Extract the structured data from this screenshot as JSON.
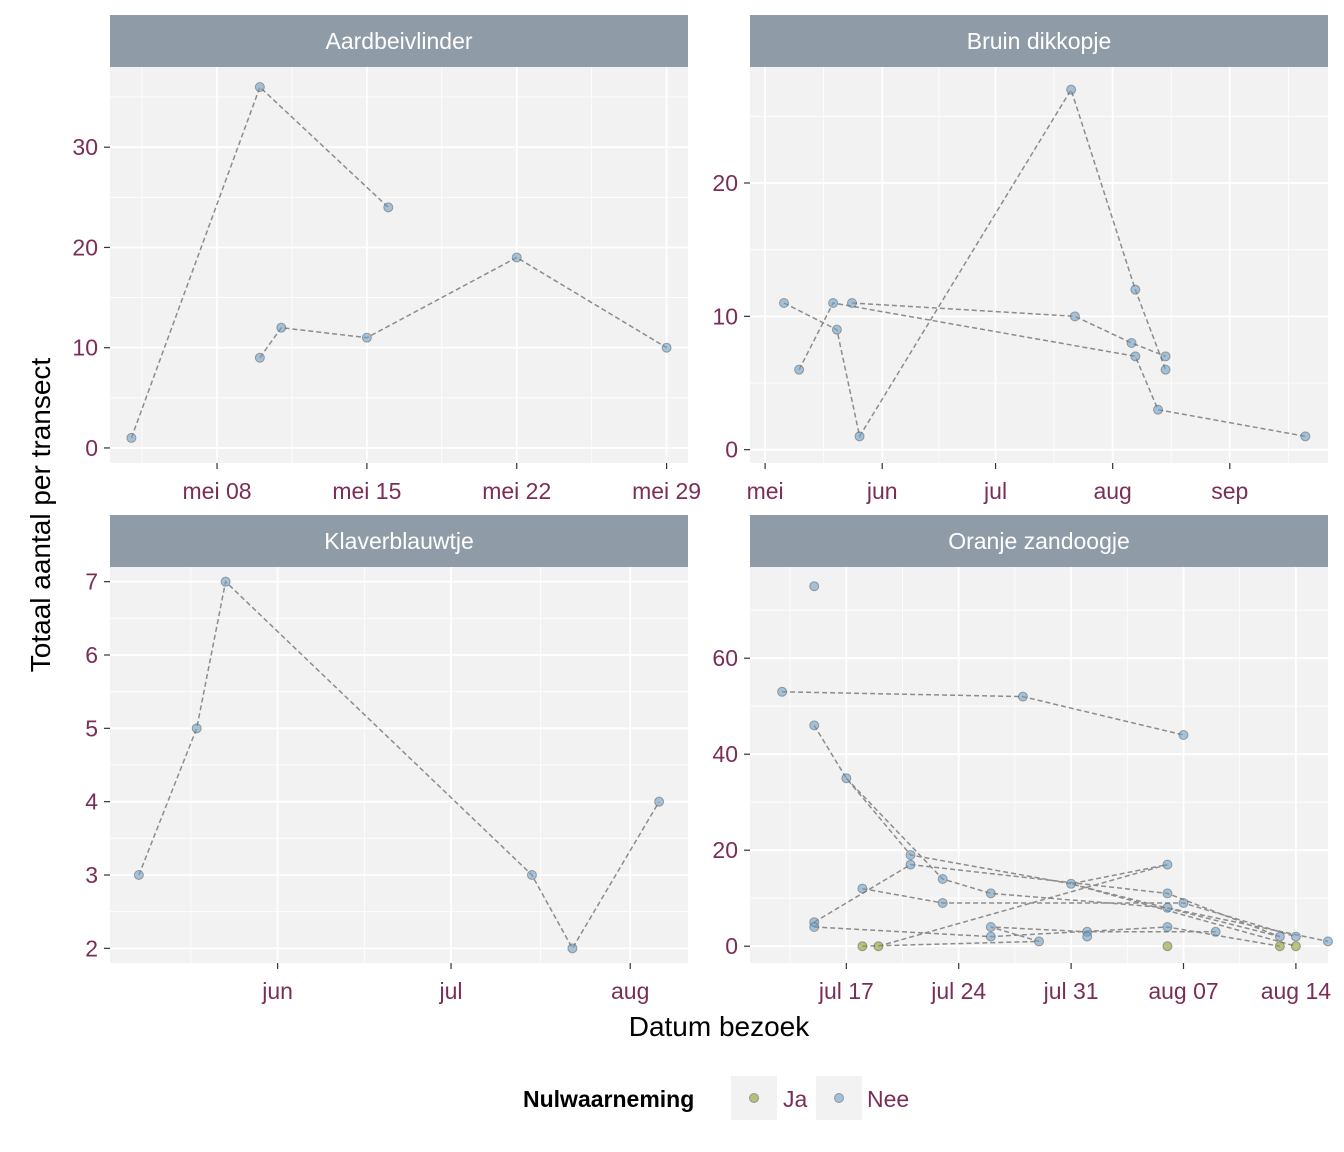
{
  "chart_data": {
    "type": "line",
    "xlabel": "Datum bezoek",
    "ylabel": "Totaal aantal per transect",
    "legend": {
      "title": "Nulwaarneming",
      "position": "bottom",
      "entries": [
        {
          "label": "Ja",
          "color": "#8f9c2f"
        },
        {
          "label": "Nee",
          "color": "#6e9ec4"
        }
      ]
    },
    "colors": {
      "panel_bg": "#f2f2f2",
      "strip_bg": "#8f9ba6",
      "grid": "#ffffff",
      "line": "#8c8c8c",
      "tick_text": "#7a2e57"
    },
    "panels": [
      {
        "title": "Aardbeivlinder",
        "xlim": [
          "2019-05-03",
          "2019-05-30"
        ],
        "ylim": [
          -1.5,
          38
        ],
        "xticks": [
          {
            "date": "2019-05-08",
            "label": "mei 08"
          },
          {
            "date": "2019-05-15",
            "label": "mei 15"
          },
          {
            "date": "2019-05-22",
            "label": "mei 22"
          },
          {
            "date": "2019-05-29",
            "label": "mei 29"
          }
        ],
        "yticks": [
          0,
          10,
          20,
          30
        ],
        "points": [
          {
            "x": "2019-05-04",
            "y": 1,
            "nul": "Nee"
          },
          {
            "x": "2019-05-10",
            "y": 36,
            "nul": "Nee"
          },
          {
            "x": "2019-05-16",
            "y": 24,
            "nul": "Nee"
          },
          {
            "x": "2019-05-10",
            "y": 9,
            "nul": "Nee"
          },
          {
            "x": "2019-05-11",
            "y": 12,
            "nul": "Nee"
          },
          {
            "x": "2019-05-15",
            "y": 11,
            "nul": "Nee"
          },
          {
            "x": "2019-05-22",
            "y": 19,
            "nul": "Nee"
          },
          {
            "x": "2019-05-29",
            "y": 10,
            "nul": "Nee"
          }
        ],
        "lines": [
          [
            0,
            1,
            2
          ],
          [
            3,
            4,
            5,
            6,
            7
          ]
        ]
      },
      {
        "title": "Bruin dikkopje",
        "xlim": [
          "2019-04-27",
          "2019-09-27"
        ],
        "ylim": [
          -1,
          28.7
        ],
        "xticks": [
          {
            "date": "2019-05-01",
            "label": "mei"
          },
          {
            "date": "2019-06-01",
            "label": "jun"
          },
          {
            "date": "2019-07-01",
            "label": "jul"
          },
          {
            "date": "2019-08-01",
            "label": "aug"
          },
          {
            "date": "2019-09-01",
            "label": "sep"
          }
        ],
        "yticks": [
          0,
          10,
          20
        ],
        "points": [
          {
            "x": "2019-05-06",
            "y": 11,
            "nul": "Nee"
          },
          {
            "x": "2019-05-10",
            "y": 6,
            "nul": "Nee"
          },
          {
            "x": "2019-05-19",
            "y": 11,
            "nul": "Nee"
          },
          {
            "x": "2019-05-20",
            "y": 9,
            "nul": "Nee"
          },
          {
            "x": "2019-05-24",
            "y": 11,
            "nul": "Nee"
          },
          {
            "x": "2019-05-26",
            "y": 1,
            "nul": "Nee"
          },
          {
            "x": "2019-07-21",
            "y": 27,
            "nul": "Nee"
          },
          {
            "x": "2019-07-22",
            "y": 10,
            "nul": "Nee"
          },
          {
            "x": "2019-08-06",
            "y": 8,
            "nul": "Nee"
          },
          {
            "x": "2019-08-07",
            "y": 12,
            "nul": "Nee"
          },
          {
            "x": "2019-08-07",
            "y": 7,
            "nul": "Nee"
          },
          {
            "x": "2019-08-13",
            "y": 3,
            "nul": "Nee"
          },
          {
            "x": "2019-08-15",
            "y": 7,
            "nul": "Nee"
          },
          {
            "x": "2019-08-15",
            "y": 6,
            "nul": "Nee"
          },
          {
            "x": "2019-09-21",
            "y": 1,
            "nul": "Nee"
          }
        ],
        "lines": [
          [
            0,
            3,
            5,
            6,
            9,
            13
          ],
          [
            1,
            2,
            10,
            11,
            14
          ],
          [
            4,
            7,
            8,
            12
          ]
        ]
      },
      {
        "title": "Klaverblauwtje",
        "xlim": [
          "2019-05-03",
          "2019-08-11"
        ],
        "ylim": [
          1.8,
          7.2
        ],
        "xticks": [
          {
            "date": "2019-06-01",
            "label": "jun"
          },
          {
            "date": "2019-07-01",
            "label": "jul"
          },
          {
            "date": "2019-08-01",
            "label": "aug"
          }
        ],
        "yticks": [
          2,
          3,
          4,
          5,
          6,
          7
        ],
        "points": [
          {
            "x": "2019-05-08",
            "y": 3,
            "nul": "Nee"
          },
          {
            "x": "2019-05-18",
            "y": 5,
            "nul": "Nee"
          },
          {
            "x": "2019-05-23",
            "y": 7,
            "nul": "Nee"
          },
          {
            "x": "2019-07-15",
            "y": 3,
            "nul": "Nee"
          },
          {
            "x": "2019-07-22",
            "y": 2,
            "nul": "Nee"
          },
          {
            "x": "2019-08-06",
            "y": 4,
            "nul": "Nee"
          }
        ],
        "lines": [
          [
            0,
            1,
            2,
            3,
            4,
            5
          ]
        ]
      },
      {
        "title": "Oranje zandoogje",
        "xlim": [
          "2019-07-11",
          "2019-08-16"
        ],
        "ylim": [
          -3.5,
          79
        ],
        "xticks": [
          {
            "date": "2019-07-17",
            "label": "jul 17"
          },
          {
            "date": "2019-07-24",
            "label": "jul 24"
          },
          {
            "date": "2019-07-31",
            "label": "jul 31"
          },
          {
            "date": "2019-08-07",
            "label": "aug 07"
          },
          {
            "date": "2019-08-14",
            "label": "aug 14"
          }
        ],
        "yticks": [
          0,
          20,
          40,
          60
        ],
        "points": [
          {
            "x": "2019-07-13",
            "y": 53,
            "nul": "Nee"
          },
          {
            "x": "2019-07-28",
            "y": 52,
            "nul": "Nee"
          },
          {
            "x": "2019-08-07",
            "y": 44,
            "nul": "Nee"
          },
          {
            "x": "2019-07-15",
            "y": 75,
            "nul": "Nee"
          },
          {
            "x": "2019-07-15",
            "y": 46,
            "nul": "Nee"
          },
          {
            "x": "2019-07-17",
            "y": 35,
            "nul": "Nee"
          },
          {
            "x": "2019-07-21",
            "y": 19,
            "nul": "Nee"
          },
          {
            "x": "2019-07-21",
            "y": 17,
            "nul": "Nee"
          },
          {
            "x": "2019-07-18",
            "y": 12,
            "nul": "Nee"
          },
          {
            "x": "2019-07-23",
            "y": 14,
            "nul": "Nee"
          },
          {
            "x": "2019-07-23",
            "y": 9,
            "nul": "Nee"
          },
          {
            "x": "2019-07-26",
            "y": 11,
            "nul": "Nee"
          },
          {
            "x": "2019-07-26",
            "y": 4,
            "nul": "Nee"
          },
          {
            "x": "2019-07-26",
            "y": 2,
            "nul": "Nee"
          },
          {
            "x": "2019-07-29",
            "y": 1,
            "nul": "Nee"
          },
          {
            "x": "2019-07-31",
            "y": 13,
            "nul": "Nee"
          },
          {
            "x": "2019-08-01",
            "y": 3,
            "nul": "Nee"
          },
          {
            "x": "2019-08-01",
            "y": 2,
            "nul": "Nee"
          },
          {
            "x": "2019-08-06",
            "y": 17,
            "nul": "Nee"
          },
          {
            "x": "2019-08-06",
            "y": 11,
            "nul": "Nee"
          },
          {
            "x": "2019-08-06",
            "y": 8,
            "nul": "Nee"
          },
          {
            "x": "2019-08-06",
            "y": 4,
            "nul": "Nee"
          },
          {
            "x": "2019-08-07",
            "y": 9,
            "nul": "Nee"
          },
          {
            "x": "2019-08-09",
            "y": 3,
            "nul": "Nee"
          },
          {
            "x": "2019-08-13",
            "y": 2,
            "nul": "Nee"
          },
          {
            "x": "2019-08-14",
            "y": 2,
            "nul": "Nee"
          },
          {
            "x": "2019-08-16",
            "y": 1,
            "nul": "Nee"
          },
          {
            "x": "2019-07-15",
            "y": 5,
            "nul": "Nee"
          },
          {
            "x": "2019-07-15",
            "y": 4,
            "nul": "Nee"
          },
          {
            "x": "2019-07-18",
            "y": 0,
            "nul": "Ja"
          },
          {
            "x": "2019-07-19",
            "y": 0,
            "nul": "Ja"
          },
          {
            "x": "2019-08-06",
            "y": 0,
            "nul": "Ja"
          },
          {
            "x": "2019-08-13",
            "y": 0,
            "nul": "Ja"
          },
          {
            "x": "2019-08-14",
            "y": 0,
            "nul": "Ja"
          }
        ],
        "lines": [
          [
            0,
            1,
            2
          ],
          [
            4,
            5,
            6,
            15,
            24
          ],
          [
            5,
            9,
            11,
            20,
            26
          ],
          [
            8,
            10,
            22,
            25
          ],
          [
            27,
            7,
            19,
            24
          ],
          [
            28,
            13,
            21,
            32
          ],
          [
            30,
            18,
            15,
            33
          ],
          [
            29,
            14,
            12,
            16,
            23
          ]
        ]
      }
    ]
  }
}
